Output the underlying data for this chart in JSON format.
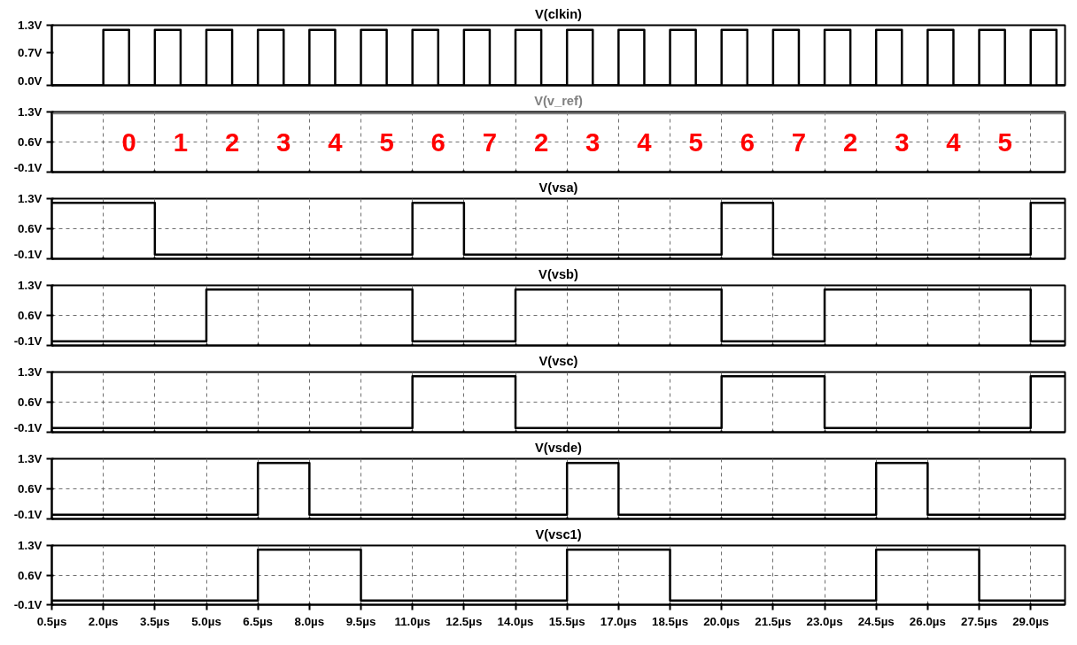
{
  "chart_data": [
    {
      "type": "step",
      "title": "V(clkin)",
      "x": [
        0.5,
        2,
        2.75,
        3.5,
        4.25,
        5,
        5.75,
        6.5,
        7.25,
        8,
        8.75,
        9.5,
        10.25,
        11,
        11.75,
        12.5,
        13.25,
        14,
        14.75,
        15.5,
        16.25,
        17,
        17.75,
        18.5,
        19.25,
        20,
        20.75,
        21.5,
        22.25,
        23,
        23.75,
        24.5,
        25.25,
        26,
        26.75,
        27.5,
        28.25,
        29,
        29.75,
        30
      ],
      "series": [
        {
          "color": "#000000",
          "values": [
            0,
            1.2,
            0,
            1.2,
            0,
            1.2,
            0,
            1.2,
            0,
            1.2,
            0,
            1.2,
            0,
            1.2,
            0,
            1.2,
            0,
            1.2,
            0,
            1.2,
            0,
            1.2,
            0,
            1.2,
            0,
            1.2,
            0,
            1.2,
            0,
            1.2,
            0,
            1.2,
            0,
            1.2,
            0,
            1.2,
            0,
            1.2,
            0,
            0
          ]
        }
      ],
      "xlim": [
        0.5,
        30
      ],
      "ylim": [
        0,
        1.3
      ],
      "yticks": [
        {
          "value": 0,
          "label": "0.0V"
        },
        {
          "value": 0.7,
          "label": "0.7V"
        },
        {
          "value": 1.3,
          "label": "1.3V"
        }
      ],
      "grid": false,
      "tick_labels": "y"
    },
    {
      "type": "step",
      "title": "V(v_ref)",
      "x": [
        0.5,
        30
      ],
      "series": [
        {
          "color": "#808080",
          "values": [
            1.27,
            1.27
          ]
        }
      ],
      "annotations": [
        "0",
        "1",
        "2",
        "3",
        "4",
        "5",
        "6",
        "7",
        "2",
        "3",
        "4",
        "5",
        "6",
        "7",
        "2",
        "3",
        "4",
        "5"
      ],
      "xlim": [
        0.5,
        30
      ],
      "xticks": [
        0.5,
        2,
        3.5,
        5,
        6.5,
        8,
        9.5,
        11,
        12.5,
        14,
        15.5,
        17,
        18.5,
        20,
        21.5,
        23,
        24.5,
        26,
        27.5,
        29
      ],
      "ylim": [
        -0.1,
        1.3
      ],
      "yticks": [
        {
          "value": -0.1,
          "label": "-0.1V"
        },
        {
          "value": 0.6,
          "label": "0.6V"
        },
        {
          "value": 1.3,
          "label": "1.3V"
        }
      ],
      "grid": true,
      "tick_labels": "y"
    },
    {
      "type": "step",
      "title": "V(vsa)",
      "x": [
        0.5,
        3.5,
        11,
        12.5,
        20,
        21.5,
        29,
        30
      ],
      "series": [
        {
          "color": "#000000",
          "values": [
            1.2,
            0,
            1.2,
            0,
            1.2,
            0,
            1.2,
            1.2
          ]
        }
      ],
      "xlim": [
        0.5,
        30
      ],
      "xticks": [
        0.5,
        2,
        3.5,
        5,
        6.5,
        8,
        9.5,
        11,
        12.5,
        14,
        15.5,
        17,
        18.5,
        20,
        21.5,
        23,
        24.5,
        26,
        27.5,
        29
      ],
      "ylim": [
        -0.1,
        1.3
      ],
      "yticks": [
        {
          "value": -0.1,
          "label": "-0.1V"
        },
        {
          "value": 0.6,
          "label": "0.6V"
        },
        {
          "value": 1.3,
          "label": "1.3V"
        }
      ],
      "grid": true,
      "tick_labels": "y"
    },
    {
      "type": "step",
      "title": "V(vsb)",
      "x": [
        0.5,
        5,
        11,
        14,
        20,
        23,
        29,
        30
      ],
      "series": [
        {
          "color": "#000000",
          "values": [
            0,
            1.2,
            0,
            1.2,
            0,
            1.2,
            0,
            0
          ]
        }
      ],
      "xlim": [
        0.5,
        30
      ],
      "xticks": [
        0.5,
        2,
        3.5,
        5,
        6.5,
        8,
        9.5,
        11,
        12.5,
        14,
        15.5,
        17,
        18.5,
        20,
        21.5,
        23,
        24.5,
        26,
        27.5,
        29
      ],
      "ylim": [
        -0.1,
        1.3
      ],
      "yticks": [
        {
          "value": -0.1,
          "label": "-0.1V"
        },
        {
          "value": 0.6,
          "label": "0.6V"
        },
        {
          "value": 1.3,
          "label": "1.3V"
        }
      ],
      "grid": true,
      "tick_labels": "y"
    },
    {
      "type": "step",
      "title": "V(vsc)",
      "x": [
        0.5,
        11,
        14,
        20,
        23,
        29,
        30
      ],
      "series": [
        {
          "color": "#000000",
          "values": [
            0,
            1.2,
            0,
            1.2,
            0,
            1.2,
            1.2
          ]
        }
      ],
      "xlim": [
        0.5,
        30
      ],
      "xticks": [
        0.5,
        2,
        3.5,
        5,
        6.5,
        8,
        9.5,
        11,
        12.5,
        14,
        15.5,
        17,
        18.5,
        20,
        21.5,
        23,
        24.5,
        26,
        27.5,
        29
      ],
      "ylim": [
        -0.1,
        1.3
      ],
      "yticks": [
        {
          "value": -0.1,
          "label": "-0.1V"
        },
        {
          "value": 0.6,
          "label": "0.6V"
        },
        {
          "value": 1.3,
          "label": "1.3V"
        }
      ],
      "grid": true,
      "tick_labels": "y"
    },
    {
      "type": "step",
      "title": "V(vsde)",
      "x": [
        0.5,
        6.5,
        8,
        15.5,
        17,
        24.5,
        26,
        30
      ],
      "series": [
        {
          "color": "#000000",
          "values": [
            0,
            1.2,
            0,
            1.2,
            0,
            1.2,
            0,
            0
          ]
        }
      ],
      "xlim": [
        0.5,
        30
      ],
      "xticks": [
        0.5,
        2,
        3.5,
        5,
        6.5,
        8,
        9.5,
        11,
        12.5,
        14,
        15.5,
        17,
        18.5,
        20,
        21.5,
        23,
        24.5,
        26,
        27.5,
        29
      ],
      "ylim": [
        -0.1,
        1.3
      ],
      "yticks": [
        {
          "value": -0.1,
          "label": "-0.1V"
        },
        {
          "value": 0.6,
          "label": "0.6V"
        },
        {
          "value": 1.3,
          "label": "1.3V"
        }
      ],
      "grid": true,
      "tick_labels": "y"
    },
    {
      "type": "step",
      "title": "V(vsc1)",
      "x": [
        0.5,
        6.5,
        9.5,
        15.5,
        18.5,
        24.5,
        27.5,
        30
      ],
      "series": [
        {
          "color": "#000000",
          "values": [
            0,
            1.2,
            0,
            1.2,
            0,
            1.2,
            0,
            0
          ]
        }
      ],
      "xlim": [
        0.5,
        30
      ],
      "xticks": [
        {
          "value": 0.5,
          "label": "0.5µs"
        },
        {
          "value": 2,
          "label": "2.0µs"
        },
        {
          "value": 3.5,
          "label": "3.5µs"
        },
        {
          "value": 5,
          "label": "5.0µs"
        },
        {
          "value": 6.5,
          "label": "6.5µs"
        },
        {
          "value": 8,
          "label": "8.0µs"
        },
        {
          "value": 9.5,
          "label": "9.5µs"
        },
        {
          "value": 11,
          "label": "11.0µs"
        },
        {
          "value": 12.5,
          "label": "12.5µs"
        },
        {
          "value": 14,
          "label": "14.0µs"
        },
        {
          "value": 15.5,
          "label": "15.5µs"
        },
        {
          "value": 17,
          "label": "17.0µs"
        },
        {
          "value": 18.5,
          "label": "18.5µs"
        },
        {
          "value": 20,
          "label": "20.0µs"
        },
        {
          "value": 21.5,
          "label": "21.5µs"
        },
        {
          "value": 23,
          "label": "23.0µs"
        },
        {
          "value": 24.5,
          "label": "24.5µs"
        },
        {
          "value": 26,
          "label": "26.0µs"
        },
        {
          "value": 27.5,
          "label": "27.5µs"
        },
        {
          "value": 29,
          "label": "29.0µs"
        }
      ],
      "ylim": [
        -0.1,
        1.3
      ],
      "yticks": [
        {
          "value": -0.1,
          "label": "-0.1V"
        },
        {
          "value": 0.6,
          "label": "0.6V"
        },
        {
          "value": 1.3,
          "label": "1.3V"
        }
      ],
      "grid": true
    }
  ]
}
